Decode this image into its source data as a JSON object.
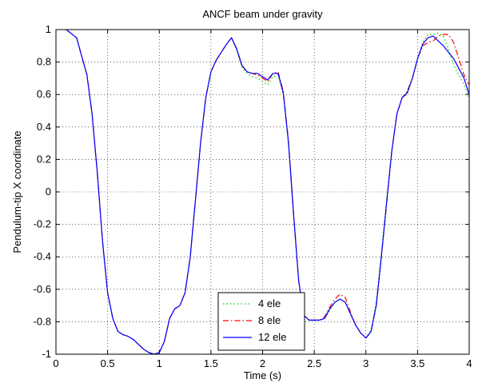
{
  "chart_data": {
    "type": "line",
    "title": "ANCF beam under gravity",
    "xlabel": "Time (s)",
    "ylabel": "Pendulum-tip X coordinate",
    "xlim": [
      0,
      4
    ],
    "ylim": [
      -1,
      1
    ],
    "xticks": [
      0,
      0.5,
      1,
      1.5,
      2,
      2.5,
      3,
      3.5,
      4
    ],
    "xtick_labels": [
      "0",
      "0.5",
      "1",
      "1.5",
      "2",
      "2.5",
      "3",
      "3.5",
      "4"
    ],
    "yticks": [
      -1,
      -0.8,
      -0.6,
      -0.4,
      -0.2,
      0,
      0.2,
      0.4,
      0.6,
      0.8,
      1
    ],
    "ytick_labels": [
      "-1",
      "-0.8",
      "-0.6",
      "-0.4",
      "-0.2",
      "0",
      "0.2",
      "0.4",
      "0.6",
      "0.8",
      "1"
    ],
    "grid": true,
    "legend_position": "bottom-center",
    "series": [
      {
        "name": "4 ele",
        "color": "#00cc00",
        "style": "dotted",
        "x": [
          0.1,
          0.2,
          0.3,
          0.35,
          0.4,
          0.45,
          0.5,
          0.55,
          0.6,
          0.65,
          0.7,
          0.75,
          0.8,
          0.85,
          0.9,
          0.95,
          1.0,
          1.05,
          1.1,
          1.15,
          1.2,
          1.25,
          1.3,
          1.35,
          1.4,
          1.45,
          1.5,
          1.55,
          1.6,
          1.65,
          1.7,
          1.75,
          1.8,
          1.85,
          1.9,
          1.95,
          2.0,
          2.05,
          2.1,
          2.15,
          2.2,
          2.25,
          2.3,
          2.35,
          2.4,
          2.45,
          2.5,
          2.55,
          2.6,
          2.65,
          2.7,
          2.75,
          2.8,
          2.85,
          2.9,
          2.95,
          3.0,
          3.05,
          3.1,
          3.15,
          3.2,
          3.25,
          3.3,
          3.35,
          3.4,
          3.45,
          3.5,
          3.55,
          3.6,
          3.65,
          3.7,
          3.75,
          3.8,
          3.85,
          3.9,
          3.95,
          4.0
        ],
        "y": [
          1.0,
          0.95,
          0.72,
          0.48,
          0.12,
          -0.3,
          -0.62,
          -0.78,
          -0.86,
          -0.88,
          -0.89,
          -0.91,
          -0.94,
          -0.97,
          -0.99,
          -1.0,
          -0.99,
          -0.92,
          -0.78,
          -0.72,
          -0.7,
          -0.62,
          -0.4,
          -0.05,
          0.3,
          0.58,
          0.74,
          0.81,
          0.86,
          0.91,
          0.95,
          0.87,
          0.77,
          0.73,
          0.71,
          0.7,
          0.68,
          0.66,
          0.71,
          0.72,
          0.6,
          0.3,
          -0.15,
          -0.55,
          -0.76,
          -0.79,
          -0.79,
          -0.79,
          -0.78,
          -0.73,
          -0.68,
          -0.66,
          -0.68,
          -0.75,
          -0.82,
          -0.87,
          -0.9,
          -0.85,
          -0.68,
          -0.38,
          -0.05,
          0.25,
          0.48,
          0.58,
          0.6,
          0.7,
          0.82,
          0.92,
          0.97,
          0.97,
          0.98,
          0.96,
          0.88,
          0.78,
          0.72,
          0.66,
          0.58
        ]
      },
      {
        "name": "8 ele",
        "color": "#ff0000",
        "style": "dashdot",
        "x": [
          0.1,
          0.2,
          0.3,
          0.35,
          0.4,
          0.45,
          0.5,
          0.55,
          0.6,
          0.65,
          0.7,
          0.75,
          0.8,
          0.85,
          0.9,
          0.95,
          1.0,
          1.05,
          1.1,
          1.15,
          1.2,
          1.25,
          1.3,
          1.35,
          1.4,
          1.45,
          1.5,
          1.55,
          1.6,
          1.65,
          1.7,
          1.75,
          1.8,
          1.85,
          1.9,
          1.95,
          2.0,
          2.05,
          2.1,
          2.15,
          2.2,
          2.25,
          2.3,
          2.35,
          2.4,
          2.45,
          2.5,
          2.55,
          2.6,
          2.65,
          2.7,
          2.75,
          2.8,
          2.85,
          2.9,
          2.95,
          3.0,
          3.05,
          3.1,
          3.15,
          3.2,
          3.25,
          3.3,
          3.35,
          3.4,
          3.45,
          3.5,
          3.55,
          3.6,
          3.65,
          3.7,
          3.75,
          3.8,
          3.85,
          3.9,
          3.95,
          4.0
        ],
        "y": [
          1.0,
          0.95,
          0.72,
          0.48,
          0.12,
          -0.3,
          -0.62,
          -0.78,
          -0.86,
          -0.88,
          -0.89,
          -0.91,
          -0.94,
          -0.97,
          -0.99,
          -1.0,
          -0.99,
          -0.92,
          -0.78,
          -0.72,
          -0.7,
          -0.62,
          -0.4,
          -0.05,
          0.3,
          0.58,
          0.74,
          0.81,
          0.86,
          0.91,
          0.95,
          0.88,
          0.78,
          0.74,
          0.73,
          0.72,
          0.7,
          0.68,
          0.73,
          0.74,
          0.62,
          0.32,
          -0.13,
          -0.55,
          -0.76,
          -0.79,
          -0.79,
          -0.79,
          -0.77,
          -0.71,
          -0.66,
          -0.63,
          -0.65,
          -0.74,
          -0.82,
          -0.87,
          -0.9,
          -0.86,
          -0.7,
          -0.4,
          -0.08,
          0.25,
          0.48,
          0.58,
          0.62,
          0.7,
          0.82,
          0.9,
          0.92,
          0.93,
          0.96,
          0.97,
          0.97,
          0.92,
          0.82,
          0.72,
          0.66
        ]
      },
      {
        "name": "12 ele",
        "color": "#0000ff",
        "style": "solid",
        "x": [
          0.1,
          0.2,
          0.3,
          0.35,
          0.4,
          0.45,
          0.5,
          0.55,
          0.6,
          0.65,
          0.7,
          0.75,
          0.8,
          0.85,
          0.9,
          0.95,
          1.0,
          1.05,
          1.1,
          1.15,
          1.2,
          1.25,
          1.3,
          1.35,
          1.4,
          1.45,
          1.5,
          1.55,
          1.6,
          1.65,
          1.7,
          1.75,
          1.8,
          1.85,
          1.9,
          1.95,
          2.0,
          2.05,
          2.1,
          2.15,
          2.2,
          2.25,
          2.3,
          2.35,
          2.4,
          2.45,
          2.5,
          2.55,
          2.6,
          2.65,
          2.7,
          2.75,
          2.8,
          2.85,
          2.9,
          2.95,
          3.0,
          3.05,
          3.1,
          3.15,
          3.2,
          3.25,
          3.3,
          3.35,
          3.4,
          3.45,
          3.5,
          3.55,
          3.6,
          3.65,
          3.7,
          3.75,
          3.8,
          3.85,
          3.9,
          3.95,
          4.0
        ],
        "y": [
          1.0,
          0.95,
          0.72,
          0.48,
          0.12,
          -0.3,
          -0.62,
          -0.78,
          -0.86,
          -0.88,
          -0.89,
          -0.91,
          -0.94,
          -0.97,
          -0.99,
          -1.0,
          -0.99,
          -0.92,
          -0.78,
          -0.72,
          -0.7,
          -0.62,
          -0.4,
          -0.05,
          0.3,
          0.58,
          0.74,
          0.81,
          0.86,
          0.91,
          0.95,
          0.88,
          0.78,
          0.74,
          0.73,
          0.73,
          0.71,
          0.69,
          0.73,
          0.73,
          0.61,
          0.31,
          -0.14,
          -0.55,
          -0.76,
          -0.79,
          -0.79,
          -0.79,
          -0.78,
          -0.72,
          -0.68,
          -0.66,
          -0.68,
          -0.75,
          -0.82,
          -0.87,
          -0.9,
          -0.86,
          -0.7,
          -0.4,
          -0.07,
          0.25,
          0.48,
          0.58,
          0.61,
          0.7,
          0.82,
          0.91,
          0.95,
          0.96,
          0.93,
          0.9,
          0.86,
          0.82,
          0.76,
          0.7,
          0.6
        ]
      }
    ]
  }
}
